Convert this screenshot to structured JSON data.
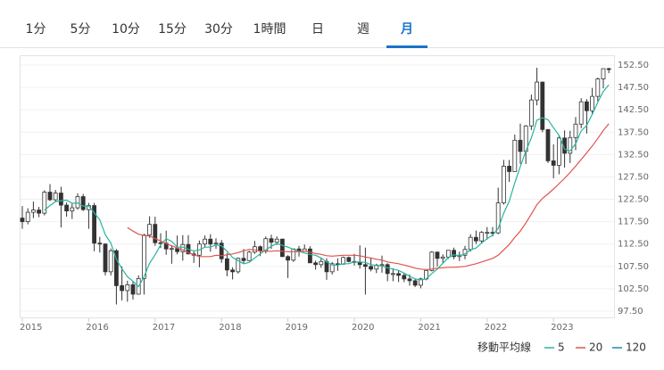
{
  "tabs": [
    "1分",
    "5分",
    "10分",
    "15分",
    "30分",
    "1時間",
    "日",
    "週",
    "月"
  ],
  "active_tab": 8,
  "chart_data": {
    "type": "candlestick",
    "categories": [
      "2015",
      null,
      null,
      null,
      null,
      null,
      null,
      null,
      null,
      null,
      null,
      null,
      "2016",
      null,
      null,
      null,
      null,
      null,
      null,
      null,
      null,
      null,
      null,
      null,
      "2017",
      null,
      null,
      null,
      null,
      null,
      null,
      null,
      null,
      null,
      null,
      null,
      "2018",
      null,
      null,
      null,
      null,
      null,
      null,
      null,
      null,
      null,
      null,
      null,
      "2019",
      null,
      null,
      null,
      null,
      null,
      null,
      null,
      null,
      null,
      null,
      null,
      "2020",
      null,
      null,
      null,
      null,
      null,
      null,
      null,
      null,
      null,
      null,
      null,
      "2021",
      null,
      null,
      null,
      null,
      null,
      null,
      null,
      null,
      null,
      null,
      null,
      "2022",
      null,
      null,
      null,
      null,
      null,
      null,
      null,
      null,
      null,
      null,
      null,
      "2023",
      null,
      null,
      null,
      null,
      null,
      null,
      null,
      null,
      null,
      null
    ],
    "open": [
      118.3,
      117.5,
      119.6,
      120.1,
      119.4,
      124.1,
      122.4,
      123.9,
      121.2,
      119.9,
      120.6,
      123.1,
      120.2,
      121.1,
      112.7,
      112.5,
      106.3,
      111.0,
      103.2,
      102.1,
      103.4,
      101.3,
      104.8,
      114.5,
      116.9,
      112.8,
      112.7,
      111.4,
      111.5,
      110.8,
      112.4,
      110.3,
      110.0,
      112.5,
      113.6,
      112.5,
      112.7,
      109.2,
      106.7,
      106.3,
      109.3,
      108.8,
      110.7,
      111.9,
      111.0,
      113.7,
      112.9,
      113.6,
      109.7,
      108.9,
      111.4,
      110.9,
      111.4,
      108.3,
      107.9,
      108.6,
      106.3,
      108.1,
      108.0,
      109.5,
      108.6,
      108.4,
      107.9,
      107.5,
      106.9,
      107.8,
      107.9,
      105.9,
      105.9,
      105.5,
      104.7,
      104.3,
      103.3,
      104.7,
      106.6,
      110.7,
      109.3,
      109.6,
      111.1,
      109.7,
      110.0,
      111.3,
      114.0,
      113.2,
      115.1,
      115.1,
      115.0,
      121.7,
      129.9,
      128.7,
      135.7,
      133.2,
      138.9,
      144.7,
      148.7,
      138.1,
      131.1,
      130.1,
      136.2,
      132.8,
      136.3,
      139.3,
      144.3,
      142.3,
      145.5,
      149.4,
      151.7
    ],
    "high": [
      121.0,
      120.5,
      122.0,
      120.8,
      124.5,
      125.9,
      124.6,
      125.3,
      121.8,
      121.5,
      123.8,
      123.7,
      121.7,
      121.7,
      114.1,
      112.7,
      111.5,
      111.4,
      107.5,
      104.3,
      104.2,
      105.5,
      114.8,
      118.7,
      118.6,
      114.9,
      115.5,
      112.2,
      114.4,
      114.5,
      114.5,
      111.0,
      113.3,
      114.4,
      114.7,
      113.8,
      113.4,
      110.5,
      107.3,
      109.5,
      111.4,
      111.0,
      113.2,
      112.2,
      114.2,
      114.6,
      114.2,
      113.7,
      110.0,
      111.5,
      112.1,
      112.4,
      112.0,
      108.8,
      109.3,
      109.3,
      108.5,
      109.3,
      109.7,
      109.7,
      110.3,
      112.2,
      111.7,
      109.4,
      108.1,
      109.9,
      108.2,
      107.1,
      106.6,
      106.1,
      105.7,
      104.8,
      105.0,
      106.7,
      110.9,
      110.8,
      110.2,
      111.1,
      111.7,
      110.8,
      112.1,
      114.7,
      115.5,
      115.4,
      116.3,
      116.3,
      125.1,
      131.3,
      131.3,
      137.0,
      139.4,
      139.1,
      145.9,
      151.9,
      148.8,
      138.2,
      134.8,
      136.9,
      137.9,
      137.8,
      140.9,
      145.1,
      144.9,
      147.4,
      149.7,
      151.7,
      151.9
    ],
    "low": [
      115.9,
      116.9,
      118.3,
      118.5,
      118.9,
      122.1,
      122.0,
      116.2,
      118.6,
      118.1,
      120.2,
      119.9,
      115.9,
      110.9,
      110.6,
      105.5,
      105.5,
      99.0,
      99.9,
      99.6,
      100.1,
      101.2,
      101.2,
      113.9,
      112.1,
      111.6,
      110.1,
      108.1,
      110.2,
      108.8,
      110.2,
      108.3,
      107.3,
      111.7,
      110.8,
      111.4,
      108.3,
      105.3,
      104.6,
      105.9,
      108.1,
      108.7,
      110.3,
      109.8,
      110.4,
      111.4,
      112.3,
      109.6,
      104.9,
      108.5,
      109.7,
      110.8,
      108.3,
      106.8,
      107.2,
      104.5,
      105.7,
      106.5,
      107.9,
      108.4,
      107.7,
      107.0,
      101.2,
      106.4,
      106.0,
      106.1,
      104.2,
      104.2,
      104.0,
      104.0,
      103.2,
      102.9,
      102.6,
      104.4,
      106.4,
      107.5,
      108.3,
      109.2,
      109.1,
      108.7,
      109.1,
      110.8,
      112.5,
      112.6,
      113.5,
      114.2,
      114.7,
      121.3,
      126.4,
      128.7,
      130.4,
      130.4,
      138.0,
      143.5,
      137.5,
      130.6,
      127.2,
      128.1,
      129.6,
      130.6,
      133.5,
      138.4,
      137.2,
      141.5,
      144.4,
      147.3,
      150.7
    ],
    "close": [
      117.5,
      119.6,
      120.1,
      119.4,
      124.1,
      122.4,
      123.9,
      121.2,
      119.9,
      120.6,
      123.1,
      120.2,
      121.1,
      112.7,
      112.5,
      106.3,
      111.0,
      103.2,
      102.1,
      103.4,
      101.3,
      104.8,
      114.5,
      116.9,
      112.8,
      112.7,
      111.4,
      111.5,
      110.8,
      112.4,
      110.3,
      110.0,
      112.5,
      113.6,
      112.5,
      112.7,
      109.2,
      106.7,
      106.3,
      109.3,
      108.8,
      110.7,
      111.9,
      111.0,
      113.7,
      112.9,
      113.6,
      109.7,
      108.9,
      111.4,
      110.9,
      111.4,
      108.3,
      107.9,
      108.6,
      106.3,
      108.1,
      108.0,
      109.5,
      108.6,
      108.4,
      107.9,
      107.5,
      106.9,
      107.8,
      107.9,
      105.9,
      105.9,
      105.5,
      104.7,
      104.3,
      103.3,
      104.7,
      106.6,
      110.7,
      109.3,
      109.6,
      111.1,
      109.7,
      110.0,
      111.3,
      114.0,
      113.2,
      115.1,
      115.1,
      115.0,
      121.7,
      129.9,
      128.7,
      135.7,
      133.2,
      138.9,
      144.7,
      148.7,
      138.1,
      131.1,
      130.1,
      136.2,
      132.8,
      136.3,
      139.3,
      144.3,
      142.3,
      145.5,
      149.4,
      151.7,
      151.5
    ],
    "up_color": "#ffffff",
    "down_color": "#333333",
    "legend_title": "移動平均線",
    "series": [
      {
        "name": "5",
        "color": "#26b5a0",
        "values": [
          null,
          null,
          null,
          null,
          120.1,
          121.1,
          122.0,
          122.2,
          122.3,
          121.6,
          121.7,
          121.0,
          121.0,
          119.5,
          117.9,
          114.6,
          112.7,
          109.1,
          107.0,
          105.2,
          104.2,
          103.0,
          105.2,
          108.2,
          110.1,
          112.3,
          113.7,
          113.1,
          111.8,
          111.8,
          111.3,
          111.0,
          111.2,
          111.8,
          111.8,
          112.3,
          112.1,
          110.9,
          109.5,
          108.8,
          108.1,
          108.4,
          109.4,
          110.3,
          111.2,
          112.0,
          112.6,
          112.2,
          111.8,
          111.3,
          110.9,
          110.5,
          110.2,
          110.0,
          109.4,
          108.5,
          107.8,
          107.8,
          108.1,
          108.1,
          108.5,
          108.5,
          108.4,
          107.9,
          107.7,
          107.6,
          107.2,
          106.9,
          106.6,
          106.0,
          105.3,
          104.7,
          104.5,
          104.7,
          105.9,
          106.9,
          108.2,
          109.5,
          110.1,
          109.9,
          110.3,
          111.2,
          111.6,
          112.7,
          113.7,
          114.5,
          116.0,
          119.4,
          122.1,
          126.2,
          129.8,
          133.3,
          136.2,
          140.2,
          140.7,
          140.3,
          138.5,
          136.8,
          133.7,
          133.3,
          134.9,
          137.8,
          139.0,
          141.5,
          144.2,
          146.6,
          148.1
        ]
      },
      {
        "name": "20",
        "color": "#e0524f",
        "values": [
          null,
          null,
          null,
          null,
          null,
          null,
          null,
          null,
          null,
          null,
          null,
          null,
          null,
          null,
          null,
          null,
          null,
          null,
          null,
          116.2,
          115.4,
          114.7,
          114.4,
          114.3,
          113.7,
          113.2,
          112.6,
          112.1,
          111.6,
          111.2,
          110.6,
          110.1,
          109.7,
          109.7,
          109.7,
          110.0,
          109.9,
          110.1,
          110.3,
          110.6,
          111.0,
          111.3,
          111.2,
          110.9,
          110.9,
          110.9,
          111.0,
          110.9,
          110.8,
          110.8,
          110.8,
          110.9,
          110.7,
          110.4,
          110.2,
          109.9,
          109.8,
          109.9,
          110.0,
          110.0,
          110.0,
          109.9,
          109.6,
          109.4,
          109.1,
          108.9,
          108.5,
          108.3,
          108.1,
          107.8,
          107.5,
          107.1,
          106.9,
          106.8,
          106.9,
          107.1,
          107.2,
          107.3,
          107.3,
          107.4,
          107.5,
          107.8,
          108.1,
          108.5,
          108.9,
          109.3,
          110.0,
          111.2,
          112.4,
          114.0,
          115.4,
          117.2,
          119.2,
          121.3,
          122.7,
          123.7,
          124.8,
          126.0,
          127.2,
          128.5,
          129.9,
          131.4,
          132.9,
          134.4,
          136.1,
          137.9,
          139.4
        ]
      },
      {
        "name": "120",
        "color": "#1a8fa6",
        "values": [
          null,
          null,
          null,
          null,
          null,
          null,
          null,
          null,
          null,
          null,
          null,
          null,
          null,
          null,
          null,
          null,
          null,
          null,
          null,
          null,
          null,
          null,
          null,
          null,
          null,
          null,
          null,
          null,
          null,
          null,
          null,
          null,
          null,
          null,
          null,
          null,
          null,
          null,
          null,
          null,
          null,
          null,
          null,
          null,
          null,
          null,
          null,
          null,
          null,
          null,
          null,
          null,
          null,
          null,
          null,
          null,
          null,
          null,
          null,
          null,
          null,
          null,
          null,
          null,
          null,
          null,
          null,
          null,
          null,
          null,
          null,
          null,
          null,
          null,
          null,
          null,
          null,
          null,
          null,
          null,
          null,
          null,
          null,
          null,
          null,
          null,
          null,
          null,
          null,
          null,
          null,
          null,
          null,
          null,
          null,
          null,
          null,
          null,
          null,
          null,
          null,
          null,
          null,
          null,
          null,
          null,
          null
        ]
      }
    ],
    "ylim": [
      97.5,
      152.5
    ],
    "yticks": [
      {
        "value": 97.5,
        "label": "97.50"
      },
      {
        "value": 102.5,
        "label": "102.50"
      },
      {
        "value": 107.5,
        "label": "107.50"
      },
      {
        "value": 112.5,
        "label": "112.50"
      },
      {
        "value": 117.5,
        "label": "117.50"
      },
      {
        "value": 122.5,
        "label": "122.50"
      },
      {
        "value": 127.5,
        "label": "127.50"
      },
      {
        "value": 132.5,
        "label": "132.50"
      },
      {
        "value": 137.5,
        "label": "137.50"
      },
      {
        "value": 142.5,
        "label": "142.50"
      },
      {
        "value": 147.5,
        "label": "147.50"
      },
      {
        "value": 152.5,
        "label": "152.50"
      }
    ],
    "grid": true
  }
}
